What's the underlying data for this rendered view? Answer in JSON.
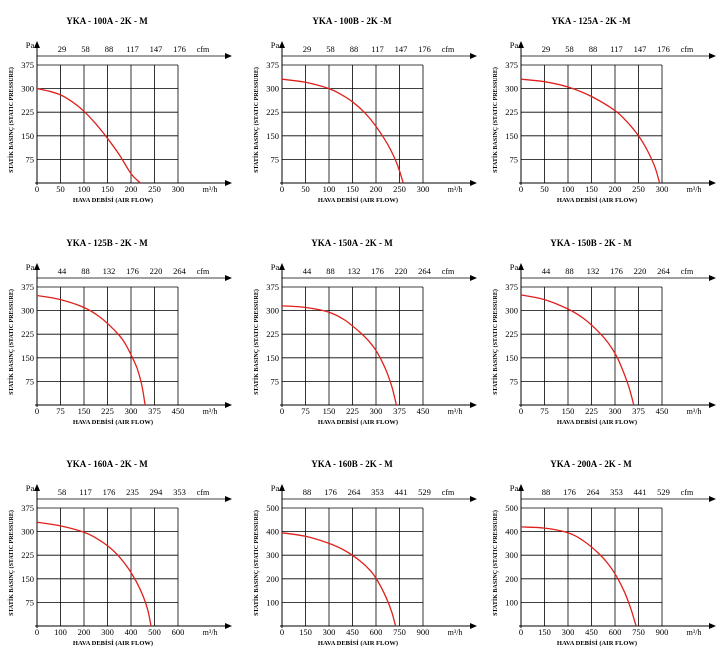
{
  "charts": [
    {
      "title": "YKA - 100A - 2K - M",
      "ylabel": "STATİK BASINÇ (STATIC PRESSURE)",
      "xlabel": "HAVA DEBİSİ (AIR FLOW)",
      "yunit": "Pa",
      "xunit": "m³/h",
      "topunit": "cfm",
      "yticks": [
        "75",
        "150",
        "225",
        "300",
        "375"
      ],
      "xticks": [
        "0",
        "50",
        "100",
        "150",
        "200",
        "250",
        "300"
      ],
      "topticks": [
        "29",
        "58",
        "88",
        "117",
        "147",
        "176"
      ]
    },
    {
      "title": "YKA - 100B - 2K -M",
      "ylabel": "STATİK BASINÇ (STATIC PRESSURE)",
      "xlabel": "HAVA DEBİSİ (AIR FLOW)",
      "yunit": "Pa",
      "xunit": "m³/h",
      "topunit": "cfm",
      "yticks": [
        "75",
        "150",
        "225",
        "300",
        "375"
      ],
      "xticks": [
        "0",
        "50",
        "100",
        "150",
        "200",
        "250",
        "300"
      ],
      "topticks": [
        "29",
        "58",
        "88",
        "117",
        "147",
        "176"
      ]
    },
    {
      "title": "YKA - 125A - 2K -M",
      "ylabel": "STATİK BASINÇ (STATIC PRESSURE)",
      "xlabel": "HAVA DEBİSİ (AIR FLOW)",
      "yunit": "Pa",
      "xunit": "m³/h",
      "topunit": "cfm",
      "yticks": [
        "75",
        "150",
        "225",
        "300",
        "375"
      ],
      "xticks": [
        "0",
        "50",
        "100",
        "150",
        "200",
        "250",
        "300"
      ],
      "topticks": [
        "29",
        "58",
        "88",
        "117",
        "147",
        "176"
      ]
    },
    {
      "title": "YKA -  125B - 2K - M",
      "ylabel": "STATİK BASINÇ (STATIC PRESSURE)",
      "xlabel": "HAVA DEBİSİ (AIR FLOW)",
      "yunit": "Pa",
      "xunit": "m³/h",
      "topunit": "cfm",
      "yticks": [
        "75",
        "150",
        "225",
        "300",
        "375"
      ],
      "xticks": [
        "0",
        "75",
        "150",
        "225",
        "300",
        "375",
        "450"
      ],
      "topticks": [
        "44",
        "88",
        "132",
        "176",
        "220",
        "264"
      ]
    },
    {
      "title": "YKA - 150A - 2K - M",
      "ylabel": "STATİK BASINÇ (STATIC PRESSURE)",
      "xlabel": "HAVA DEBİSİ (AIR FLOW)",
      "yunit": "Pa",
      "xunit": "m³/h",
      "topunit": "cfm",
      "yticks": [
        "75",
        "150",
        "225",
        "300",
        "375"
      ],
      "xticks": [
        "0",
        "75",
        "150",
        "225",
        "300",
        "375",
        "450"
      ],
      "topticks": [
        "44",
        "88",
        "132",
        "176",
        "220",
        "264"
      ]
    },
    {
      "title": "YKA - 150B - 2K - M",
      "ylabel": "STATİK BASINÇ (STATIC PRESSURE)",
      "xlabel": "HAVA DEBİSİ (AIR FLOW)",
      "yunit": "Pa",
      "xunit": "m³/h",
      "topunit": "cfm",
      "yticks": [
        "75",
        "150",
        "225",
        "300",
        "375"
      ],
      "xticks": [
        "0",
        "75",
        "150",
        "225",
        "300",
        "375",
        "450"
      ],
      "topticks": [
        "44",
        "88",
        "132",
        "176",
        "220",
        "264"
      ]
    },
    {
      "title": "YKA -  160A - 2K - M",
      "ylabel": "STATİK BASINÇ (STATIC PRESSURE)",
      "xlabel": "HAVA DEBİSİ (AIR FLOW)",
      "yunit": "Pa",
      "xunit": "m³/h",
      "topunit": "cfm",
      "yticks": [
        "75",
        "150",
        "225",
        "300",
        "375"
      ],
      "xticks": [
        "0",
        "100",
        "200",
        "300",
        "400",
        "500",
        "600"
      ],
      "topticks": [
        "58",
        "117",
        "176",
        "235",
        "294",
        "353"
      ]
    },
    {
      "title": "YKA - 160B - 2K - M",
      "ylabel": "STATİK BASINÇ (STATIC PRESSURE)",
      "xlabel": "HAVA DEBİSİ (AIR FLOW)",
      "yunit": "Pa",
      "xunit": "m³/h",
      "topunit": "cfm",
      "yticks": [
        "100",
        "200",
        "300",
        "400",
        "500"
      ],
      "xticks": [
        "0",
        "150",
        "300",
        "450",
        "600",
        "750",
        "900"
      ],
      "topticks": [
        "88",
        "176",
        "264",
        "353",
        "441",
        "529"
      ]
    },
    {
      "title": "YKA - 200A - 2K - M",
      "ylabel": "STATİK BASINÇ (STATIC PRESSURE)",
      "xlabel": "HAVA DEBİSİ (AIR FLOW)",
      "yunit": "Pa",
      "xunit": "m³/h",
      "topunit": "cfm",
      "yticks": [
        "100",
        "200",
        "300",
        "400",
        "500"
      ],
      "xticks": [
        "0",
        "150",
        "300",
        "450",
        "600",
        "750",
        "900"
      ],
      "topticks": [
        "88",
        "176",
        "264",
        "353",
        "441",
        "529"
      ]
    }
  ],
  "chart_data": [
    {
      "type": "line",
      "title": "YKA - 100A - 2K - M",
      "xlabel": "HAVA DEBİSİ (AIR FLOW)",
      "ylabel": "STATİK BASINÇ (STATIC PRESSURE)",
      "xlim": [
        0,
        300
      ],
      "ylim": [
        0,
        375
      ],
      "grid": true,
      "curve_color": "#e0201b",
      "series": [
        {
          "x": [
            0,
            25,
            50,
            75,
            100,
            125,
            150,
            175,
            200,
            220
          ],
          "y": [
            300,
            292,
            280,
            258,
            228,
            188,
            142,
            90,
            30,
            0
          ]
        }
      ]
    },
    {
      "type": "line",
      "title": "YKA - 100B - 2K -M",
      "xlabel": "HAVA DEBİSİ (AIR FLOW)",
      "ylabel": "STATİK BASINÇ (STATIC PRESSURE)",
      "xlim": [
        0,
        300
      ],
      "ylim": [
        0,
        375
      ],
      "grid": true,
      "curve_color": "#e0201b",
      "series": [
        {
          "x": [
            0,
            50,
            100,
            125,
            150,
            175,
            200,
            225,
            245,
            258
          ],
          "y": [
            330,
            320,
            300,
            282,
            258,
            225,
            180,
            122,
            60,
            0
          ]
        }
      ]
    },
    {
      "type": "line",
      "title": "YKA - 125A - 2K -M",
      "xlabel": "HAVA DEBİSİ (AIR FLOW)",
      "ylabel": "STATİK BASINÇ (STATIC PRESSURE)",
      "xlim": [
        0,
        300
      ],
      "ylim": [
        0,
        375
      ],
      "grid": true,
      "curve_color": "#e0201b",
      "series": [
        {
          "x": [
            0,
            50,
            100,
            150,
            200,
            225,
            250,
            270,
            285,
            295
          ],
          "y": [
            330,
            322,
            305,
            275,
            230,
            195,
            150,
            100,
            50,
            0
          ]
        }
      ]
    },
    {
      "type": "line",
      "title": "YKA -  125B - 2K - M",
      "xlabel": "HAVA DEBİSİ (AIR FLOW)",
      "ylabel": "STATİK BASINÇ (STATIC PRESSURE)",
      "xlim": [
        0,
        450
      ],
      "ylim": [
        0,
        375
      ],
      "grid": true,
      "curve_color": "#e0201b",
      "series": [
        {
          "x": [
            0,
            75,
            150,
            200,
            250,
            275,
            300,
            320,
            335,
            345
          ],
          "y": [
            348,
            335,
            310,
            280,
            235,
            205,
            160,
            115,
            60,
            0
          ]
        }
      ]
    },
    {
      "type": "line",
      "title": "YKA - 150A - 2K - M",
      "xlabel": "HAVA DEBİSİ (AIR FLOW)",
      "ylabel": "STATİK BASINÇ (STATIC PRESSURE)",
      "xlim": [
        0,
        450
      ],
      "ylim": [
        0,
        375
      ],
      "grid": true,
      "curve_color": "#e0201b",
      "series": [
        {
          "x": [
            0,
            75,
            150,
            200,
            250,
            280,
            305,
            330,
            350,
            365
          ],
          "y": [
            315,
            310,
            295,
            270,
            230,
            200,
            165,
            115,
            60,
            0
          ]
        }
      ]
    },
    {
      "type": "line",
      "title": "YKA - 150B - 2K - M",
      "xlabel": "HAVA DEBİSİ (AIR FLOW)",
      "ylabel": "STATİK BASINÇ (STATIC PRESSURE)",
      "xlim": [
        0,
        450
      ],
      "ylim": [
        0,
        375
      ],
      "grid": true,
      "curve_color": "#e0201b",
      "series": [
        {
          "x": [
            0,
            75,
            150,
            200,
            250,
            280,
            305,
            325,
            345,
            360
          ],
          "y": [
            350,
            335,
            305,
            275,
            230,
            195,
            155,
            110,
            55,
            0
          ]
        }
      ]
    },
    {
      "type": "line",
      "title": "YKA -  160A - 2K - M",
      "xlabel": "HAVA DEBİSİ (AIR FLOW)",
      "ylabel": "STATİK BASINÇ (STATIC PRESSURE)",
      "xlim": [
        0,
        600
      ],
      "ylim": [
        0,
        375
      ],
      "grid": true,
      "curve_color": "#e0201b",
      "series": [
        {
          "x": [
            0,
            100,
            200,
            250,
            300,
            350,
            400,
            440,
            470,
            485
          ],
          "y": [
            330,
            318,
            298,
            280,
            255,
            220,
            170,
            115,
            55,
            0
          ]
        }
      ]
    },
    {
      "type": "line",
      "title": "YKA - 160B - 2K - M",
      "xlabel": "HAVA DEBİSİ (AIR FLOW)",
      "ylabel": "STATİK BASINÇ (STATIC PRESSURE)",
      "xlim": [
        0,
        900
      ],
      "ylim": [
        0,
        500
      ],
      "grid": true,
      "curve_color": "#e0201b",
      "series": [
        {
          "x": [
            0,
            150,
            300,
            400,
            500,
            570,
            620,
            665,
            700,
            725
          ],
          "y": [
            395,
            380,
            350,
            320,
            275,
            230,
            180,
            120,
            60,
            0
          ]
        }
      ]
    },
    {
      "type": "line",
      "title": "YKA - 200A - 2K - M",
      "xlabel": "HAVA DEBİSİ (AIR FLOW)",
      "ylabel": "STATİK BASINÇ (STATIC PRESSURE)",
      "xlim": [
        0,
        900
      ],
      "ylim": [
        0,
        500
      ],
      "grid": true,
      "curve_color": "#e0201b",
      "series": [
        {
          "x": [
            0,
            150,
            300,
            400,
            500,
            560,
            610,
            660,
            700,
            735
          ],
          "y": [
            420,
            415,
            395,
            360,
            305,
            260,
            210,
            145,
            75,
            0
          ]
        }
      ]
    }
  ]
}
